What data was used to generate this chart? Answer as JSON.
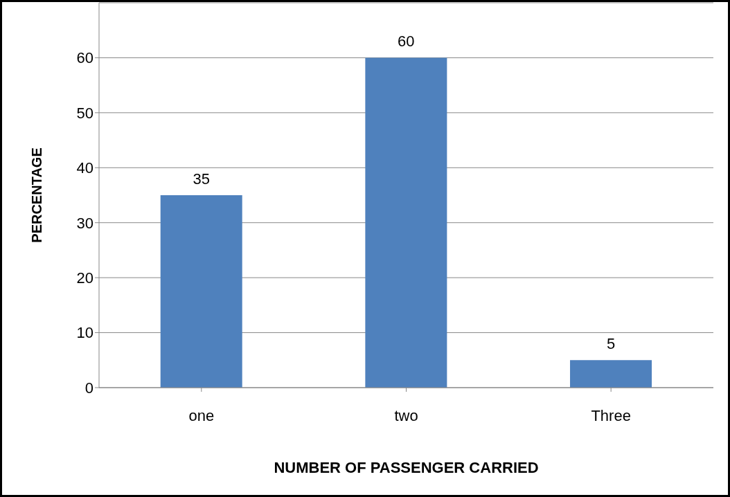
{
  "chart_data": {
    "type": "bar",
    "xlabel": "NUMBER OF PASSENGER CARRIED",
    "ylabel": "PERCENTAGE",
    "categories": [
      "one",
      "two",
      "Three"
    ],
    "values": [
      35,
      60,
      5
    ],
    "color": "#4f81bd",
    "data_labels": true,
    "ylim": [
      0,
      70
    ],
    "yticks": [
      0,
      10,
      20,
      30,
      40,
      50,
      60
    ],
    "grid": "y"
  }
}
